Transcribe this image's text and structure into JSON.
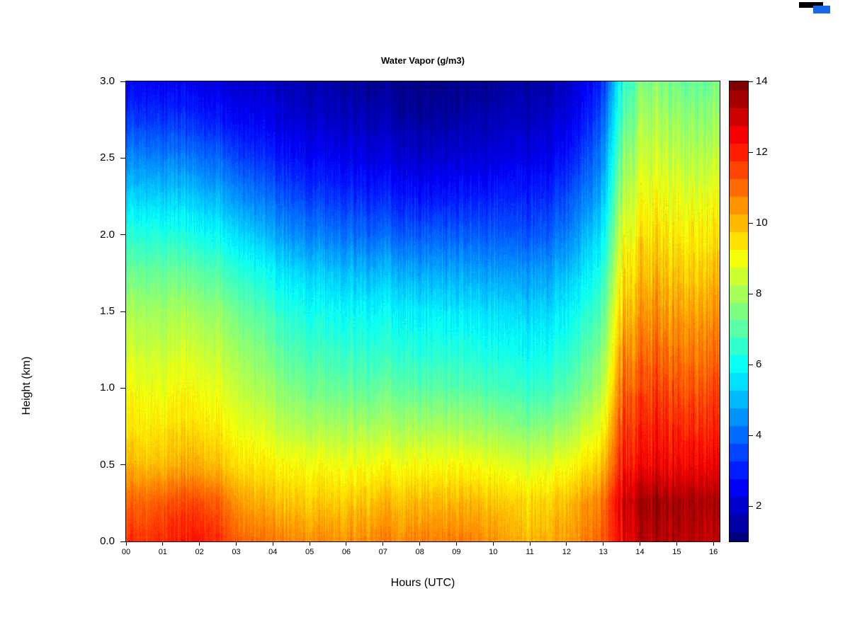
{
  "figure": {
    "title": "Water Vapor (g/m3)",
    "xlabel": "Hours (UTC)",
    "ylabel": "Height (km)"
  },
  "chart_data": {
    "type": "heatmap",
    "title": "Water Vapor (g/m3)",
    "xlabel": "Hours (UTC)",
    "ylabel": "Height (km)",
    "x_range_hours": [
      0,
      16.17
    ],
    "y_range_km": [
      0,
      3
    ],
    "x_ticks": {
      "values": [
        0,
        1,
        2,
        3,
        4,
        5,
        6,
        7,
        8,
        9,
        10,
        11,
        12,
        13,
        14,
        15,
        16
      ],
      "labels": [
        "00",
        "01",
        "02",
        "03",
        "04",
        "05",
        "06",
        "07",
        "08",
        "09",
        "10",
        "11",
        "12",
        "13",
        "14",
        "15",
        "16"
      ]
    },
    "y_ticks": {
      "values": [
        0,
        0.5,
        1,
        1.5,
        2,
        2.5,
        3
      ],
      "labels": [
        "0.0",
        "0.5",
        "1.0",
        "1.5",
        "2.0",
        "2.5",
        "3.0"
      ]
    },
    "colorbar": {
      "min": 1,
      "max": 14,
      "band_step": 0.5,
      "colormap": "jet",
      "label_values": [
        2,
        4,
        6,
        8,
        10,
        12,
        14
      ]
    },
    "grid": {
      "hours": [
        0,
        0.5,
        1,
        1.5,
        2,
        2.5,
        3,
        3.5,
        4,
        4.5,
        5,
        5.5,
        6,
        6.5,
        7,
        7.5,
        8,
        8.5,
        9,
        9.5,
        10,
        10.5,
        11,
        11.5,
        12,
        12.5,
        13,
        13.5,
        14,
        14.5,
        15,
        15.5,
        16
      ],
      "heights_km": [
        0,
        0.25,
        0.5,
        0.75,
        1,
        1.25,
        1.5,
        1.75,
        2,
        2.25,
        2.5,
        2.75,
        3
      ],
      "values_g_m3": [
        [
          11.6,
          11.8,
          11.9,
          12.0,
          12.2,
          11.8,
          11.3,
          11.0,
          10.8,
          10.7,
          10.6,
          10.6,
          10.5,
          10.6,
          10.7,
          10.6,
          10.8,
          10.7,
          10.8,
          10.7,
          10.5,
          10.2,
          10.0,
          10.2,
          10.4,
          10.8,
          11.2,
          12.5,
          13.2,
          13.3,
          13.2,
          13.3,
          13.2
        ],
        [
          11.0,
          11.2,
          11.3,
          11.4,
          11.5,
          11.2,
          10.6,
          10.2,
          10.0,
          9.9,
          9.8,
          9.8,
          9.8,
          9.9,
          10.0,
          9.9,
          10.1,
          10.0,
          10.1,
          10.0,
          9.9,
          9.7,
          9.6,
          9.8,
          10.0,
          10.4,
          10.9,
          12.8,
          13.5,
          13.6,
          13.4,
          13.6,
          13.5
        ],
        [
          9.9,
          10.0,
          10.0,
          10.1,
          10.2,
          9.9,
          9.6,
          9.4,
          9.2,
          9.1,
          9.0,
          9.0,
          8.9,
          9.0,
          9.0,
          9.0,
          9.1,
          9.0,
          9.1,
          9.0,
          8.9,
          8.7,
          8.6,
          8.8,
          9.0,
          9.4,
          9.9,
          12.0,
          12.4,
          12.5,
          12.3,
          12.5,
          12.6
        ],
        [
          9.3,
          9.4,
          9.4,
          9.5,
          9.5,
          9.3,
          9.0,
          8.7,
          8.4,
          8.2,
          8.1,
          8.0,
          8.0,
          8.0,
          8.0,
          8.0,
          8.0,
          8.0,
          8.0,
          7.9,
          7.8,
          7.6,
          7.5,
          7.7,
          7.9,
          8.4,
          9.0,
          11.5,
          11.9,
          12.0,
          11.8,
          11.9,
          12.0
        ],
        [
          8.9,
          9.0,
          8.9,
          9.0,
          9.0,
          8.8,
          8.5,
          8.1,
          7.8,
          7.5,
          7.3,
          7.2,
          7.2,
          7.1,
          7.1,
          7.1,
          7.0,
          7.0,
          7.0,
          6.9,
          6.8,
          6.6,
          6.5,
          6.7,
          7.0,
          7.5,
          8.2,
          11.0,
          11.4,
          11.5,
          11.2,
          11.3,
          11.5
        ],
        [
          8.4,
          8.5,
          8.4,
          8.5,
          8.5,
          8.3,
          8.0,
          7.6,
          7.2,
          6.9,
          6.7,
          6.6,
          6.5,
          6.5,
          6.4,
          6.4,
          6.3,
          6.3,
          6.3,
          6.2,
          6.1,
          6.0,
          5.9,
          6.1,
          6.4,
          6.9,
          7.6,
          10.4,
          10.9,
          11.0,
          10.7,
          10.8,
          11.0
        ],
        [
          7.9,
          8.0,
          7.9,
          8.0,
          7.9,
          7.7,
          7.4,
          7.0,
          6.6,
          6.3,
          6.1,
          6.0,
          5.9,
          5.9,
          5.8,
          5.8,
          5.7,
          5.7,
          5.6,
          5.6,
          5.5,
          5.4,
          5.3,
          5.5,
          5.8,
          6.3,
          7.0,
          9.8,
          10.4,
          10.5,
          10.2,
          10.3,
          10.5
        ],
        [
          7.1,
          7.3,
          7.2,
          7.2,
          7.1,
          6.9,
          6.6,
          6.2,
          5.8,
          5.5,
          5.3,
          5.2,
          5.1,
          5.0,
          5.0,
          4.9,
          4.8,
          4.8,
          4.8,
          4.7,
          4.7,
          4.6,
          4.6,
          4.8,
          5.1,
          5.6,
          6.4,
          9.2,
          9.9,
          10.0,
          9.7,
          9.8,
          10.0
        ],
        [
          6.2,
          6.4,
          6.3,
          6.2,
          6.1,
          5.9,
          5.6,
          5.2,
          4.8,
          4.5,
          4.3,
          4.2,
          4.1,
          4.0,
          3.9,
          3.8,
          3.8,
          3.8,
          3.8,
          3.8,
          3.8,
          3.7,
          3.7,
          3.9,
          4.3,
          4.9,
          5.7,
          8.6,
          9.4,
          9.5,
          9.2,
          9.3,
          9.5
        ],
        [
          5.2,
          5.4,
          5.3,
          5.2,
          5.1,
          4.9,
          4.6,
          4.2,
          3.9,
          3.6,
          3.4,
          3.3,
          3.2,
          3.1,
          3.0,
          2.9,
          2.8,
          2.8,
          2.9,
          2.9,
          3.0,
          3.0,
          3.0,
          3.2,
          3.6,
          4.2,
          5.0,
          8.0,
          8.9,
          9.0,
          8.7,
          8.8,
          9.0
        ],
        [
          4.2,
          4.4,
          4.3,
          4.2,
          4.1,
          3.9,
          3.6,
          3.3,
          3.0,
          2.8,
          2.6,
          2.5,
          2.4,
          2.3,
          2.2,
          2.1,
          2.0,
          2.0,
          2.1,
          2.1,
          2.2,
          2.3,
          2.3,
          2.5,
          2.9,
          3.5,
          4.4,
          7.4,
          8.4,
          8.5,
          8.2,
          8.2,
          8.4
        ],
        [
          3.2,
          3.4,
          3.3,
          3.2,
          3.1,
          2.9,
          2.7,
          2.5,
          2.3,
          2.1,
          2.0,
          1.9,
          1.8,
          1.7,
          1.6,
          1.5,
          1.4,
          1.4,
          1.5,
          1.6,
          1.7,
          1.8,
          1.8,
          2.0,
          2.3,
          2.9,
          3.8,
          6.8,
          7.9,
          8.0,
          7.7,
          7.7,
          7.9
        ],
        [
          2.4,
          2.6,
          2.5,
          2.4,
          2.3,
          2.2,
          2.1,
          2.0,
          1.8,
          1.7,
          1.6,
          1.5,
          1.4,
          1.3,
          1.2,
          1.1,
          1.0,
          1.0,
          1.1,
          1.2,
          1.3,
          1.4,
          1.4,
          1.6,
          1.9,
          2.4,
          3.2,
          6.2,
          7.4,
          7.5,
          7.2,
          7.2,
          7.4
        ]
      ]
    }
  }
}
